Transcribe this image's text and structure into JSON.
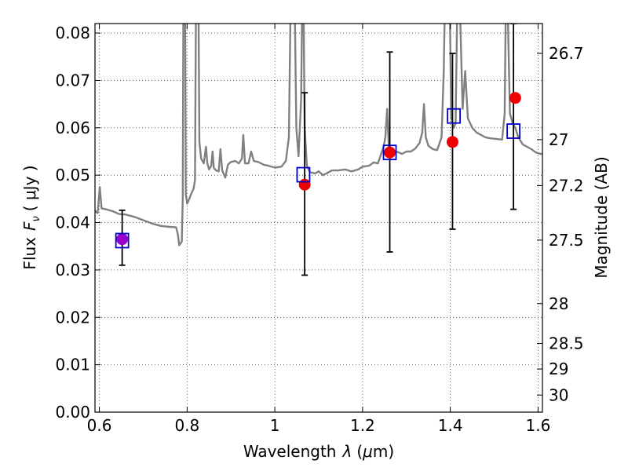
{
  "chart_data": {
    "type": "scatter",
    "xlim": [
      0.59,
      1.61
    ],
    "ylim": [
      0.0,
      0.082
    ],
    "x_ticks": [
      0.6,
      0.8,
      1.0,
      1.2,
      1.4,
      1.6
    ],
    "x_tick_labels": [
      "0.6",
      "0.8",
      "1",
      "1.2",
      "1.4",
      "1.6"
    ],
    "y_ticks": [
      0.0,
      0.01,
      0.02,
      0.03,
      0.04,
      0.05,
      0.06,
      0.07,
      0.08
    ],
    "y_tick_labels": [
      "0.00",
      "0.01",
      "0.02",
      "0.03",
      "0.04",
      "0.05",
      "0.06",
      "0.07",
      "0.08"
    ],
    "right_axis": {
      "label": "Magnitude (AB)",
      "ticks": [
        {
          "label": "26.7",
          "flux": 0.0757
        },
        {
          "label": "27",
          "flux": 0.0575
        },
        {
          "label": "27.2",
          "flux": 0.0478
        },
        {
          "label": "27.5",
          "flux": 0.0363
        },
        {
          "label": "28",
          "flux": 0.0229
        },
        {
          "label": "28.5",
          "flux": 0.0145
        },
        {
          "label": "29",
          "flux": 0.0091
        },
        {
          "label": "30",
          "flux": 0.0036
        }
      ]
    },
    "xlabel_text": "Wavelength",
    "xlabel_symbol": "λ",
    "xlabel_unit_open": "(",
    "xlabel_unit_mu": "μ",
    "xlabel_unit_rest": "m)",
    "ylabel_text": "Flux",
    "ylabel_symbol": "F",
    "ylabel_sub": "ν",
    "ylabel_unit": "( μJy )",
    "grid": true,
    "series": [
      {
        "kind": "line",
        "color": "#808080",
        "points": [
          [
            0.59,
            0.0425
          ],
          [
            0.596,
            0.042
          ],
          [
            0.601,
            0.0475
          ],
          [
            0.605,
            0.043
          ],
          [
            0.615,
            0.0428
          ],
          [
            0.63,
            0.0424
          ],
          [
            0.645,
            0.0418
          ],
          [
            0.66,
            0.0417
          ],
          [
            0.68,
            0.0412
          ],
          [
            0.7,
            0.0405
          ],
          [
            0.72,
            0.0398
          ],
          [
            0.74,
            0.0393
          ],
          [
            0.76,
            0.0391
          ],
          [
            0.775,
            0.039
          ],
          [
            0.779,
            0.0375
          ],
          [
            0.782,
            0.0352
          ],
          [
            0.788,
            0.036
          ],
          [
            0.79,
            0.045
          ],
          [
            0.792,
            0.1
          ],
          [
            0.795,
            0.1
          ],
          [
            0.797,
            0.046
          ],
          [
            0.8,
            0.044
          ],
          [
            0.805,
            0.045
          ],
          [
            0.81,
            0.0462
          ],
          [
            0.815,
            0.0472
          ],
          [
            0.818,
            0.049
          ],
          [
            0.821,
            0.1
          ],
          [
            0.825,
            0.1
          ],
          [
            0.828,
            0.057
          ],
          [
            0.832,
            0.0535
          ],
          [
            0.838,
            0.0525
          ],
          [
            0.843,
            0.056
          ],
          [
            0.846,
            0.0525
          ],
          [
            0.85,
            0.0512
          ],
          [
            0.855,
            0.052
          ],
          [
            0.858,
            0.055
          ],
          [
            0.861,
            0.0515
          ],
          [
            0.866,
            0.051
          ],
          [
            0.872,
            0.0508
          ],
          [
            0.876,
            0.0555
          ],
          [
            0.88,
            0.051
          ],
          [
            0.887,
            0.0495
          ],
          [
            0.893,
            0.0522
          ],
          [
            0.9,
            0.0528
          ],
          [
            0.91,
            0.053
          ],
          [
            0.918,
            0.0525
          ],
          [
            0.925,
            0.0535
          ],
          [
            0.928,
            0.0585
          ],
          [
            0.932,
            0.0525
          ],
          [
            0.94,
            0.0525
          ],
          [
            0.946,
            0.055
          ],
          [
            0.952,
            0.053
          ],
          [
            0.962,
            0.0528
          ],
          [
            0.975,
            0.0522
          ],
          [
            0.985,
            0.052
          ],
          [
            1.0,
            0.0516
          ],
          [
            1.015,
            0.0518
          ],
          [
            1.025,
            0.053
          ],
          [
            1.032,
            0.058
          ],
          [
            1.036,
            0.086
          ],
          [
            1.04,
            0.1
          ],
          [
            1.045,
            0.088
          ],
          [
            1.049,
            0.06
          ],
          [
            1.054,
            0.054
          ],
          [
            1.06,
            0.066
          ],
          [
            1.064,
            0.1
          ],
          [
            1.068,
            0.06
          ],
          [
            1.073,
            0.052
          ],
          [
            1.08,
            0.0506
          ],
          [
            1.092,
            0.0504
          ],
          [
            1.1,
            0.0508
          ],
          [
            1.11,
            0.05
          ],
          [
            1.12,
            0.0505
          ],
          [
            1.13,
            0.051
          ],
          [
            1.145,
            0.051
          ],
          [
            1.16,
            0.0512
          ],
          [
            1.175,
            0.0508
          ],
          [
            1.19,
            0.0512
          ],
          [
            1.2,
            0.0518
          ],
          [
            1.215,
            0.052
          ],
          [
            1.225,
            0.0527
          ],
          [
            1.235,
            0.0525
          ],
          [
            1.248,
            0.056
          ],
          [
            1.252,
            0.058
          ],
          [
            1.256,
            0.064
          ],
          [
            1.26,
            0.0555
          ],
          [
            1.27,
            0.055
          ],
          [
            1.28,
            0.0549
          ],
          [
            1.29,
            0.0545
          ],
          [
            1.3,
            0.055
          ],
          [
            1.31,
            0.055
          ],
          [
            1.32,
            0.0556
          ],
          [
            1.33,
            0.0568
          ],
          [
            1.336,
            0.059
          ],
          [
            1.34,
            0.065
          ],
          [
            1.344,
            0.058
          ],
          [
            1.35,
            0.0562
          ],
          [
            1.36,
            0.0555
          ],
          [
            1.37,
            0.0553
          ],
          [
            1.38,
            0.058
          ],
          [
            1.385,
            0.072
          ],
          [
            1.39,
            0.1
          ],
          [
            1.397,
            0.1
          ],
          [
            1.402,
            0.062
          ],
          [
            1.408,
            0.06
          ],
          [
            1.412,
            0.061
          ],
          [
            1.418,
            0.1
          ],
          [
            1.424,
            0.078
          ],
          [
            1.428,
            0.064
          ],
          [
            1.434,
            0.072
          ],
          [
            1.44,
            0.062
          ],
          [
            1.45,
            0.06
          ],
          [
            1.46,
            0.059
          ],
          [
            1.47,
            0.0585
          ],
          [
            1.48,
            0.058
          ],
          [
            1.49,
            0.0578
          ],
          [
            1.5,
            0.0577
          ],
          [
            1.51,
            0.0576
          ],
          [
            1.518,
            0.0575
          ],
          [
            1.524,
            0.063
          ],
          [
            1.528,
            0.1
          ],
          [
            1.532,
            0.08
          ],
          [
            1.536,
            0.063
          ],
          [
            1.542,
            0.061
          ],
          [
            1.548,
            0.06
          ],
          [
            1.555,
            0.058
          ],
          [
            1.565,
            0.0565
          ],
          [
            1.575,
            0.056
          ],
          [
            1.585,
            0.0555
          ],
          [
            1.595,
            0.0548
          ],
          [
            1.605,
            0.0545
          ],
          [
            1.61,
            0.0545
          ]
        ]
      },
      {
        "kind": "errorbar",
        "color": "#000000",
        "points": [
          {
            "x": 0.652,
            "ylow": 0.031,
            "yhigh": 0.0426
          },
          {
            "x": 1.068,
            "ylow": 0.0289,
            "yhigh": 0.0674
          },
          {
            "x": 1.262,
            "ylow": 0.0338,
            "yhigh": 0.076
          },
          {
            "x": 1.405,
            "ylow": 0.0386,
            "yhigh": 0.0757
          },
          {
            "x": 1.544,
            "ylow": 0.0428,
            "yhigh": 0.082
          }
        ]
      },
      {
        "kind": "markers",
        "marker": "open-square",
        "color": "#0000cc",
        "points": [
          [
            0.652,
            0.0362
          ],
          [
            1.065,
            0.0501
          ],
          [
            1.262,
            0.0548
          ],
          [
            1.408,
            0.0625
          ],
          [
            1.544,
            0.0593
          ]
        ]
      },
      {
        "kind": "markers",
        "marker": "filled-circle",
        "color": "#ee0000",
        "points": [
          [
            0.652,
            0.0365
          ],
          [
            1.068,
            0.048
          ],
          [
            1.262,
            0.0548
          ],
          [
            1.405,
            0.057
          ],
          [
            1.548,
            0.0663
          ]
        ]
      }
    ],
    "first_point_overlap_color": "#9900cc"
  }
}
